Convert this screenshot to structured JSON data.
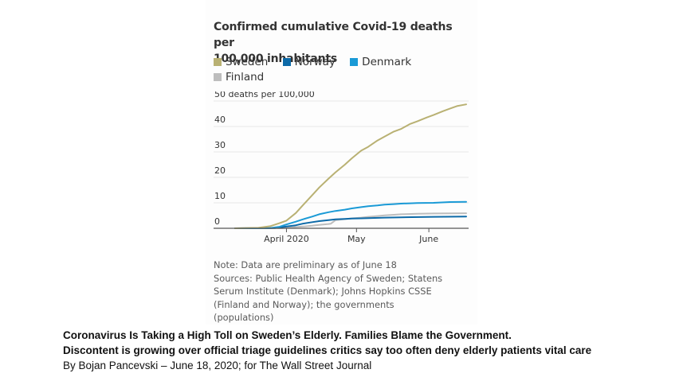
{
  "chart_data": {
    "type": "line",
    "title": "Confirmed cumulative Covid-19 deaths per 100,000 inhabitants",
    "xlabel": "",
    "ylabel": "deaths per 100,000",
    "ylim": [
      0,
      50
    ],
    "xlim_days": [
      0,
      99
    ],
    "x_axis_start": "2020-03-10",
    "yticks": [
      0,
      10,
      20,
      30,
      40,
      50
    ],
    "ytick_labels": [
      "0",
      "10",
      "20",
      "30",
      "40",
      "50 deaths per 100,000"
    ],
    "xticks": [
      {
        "day": 22,
        "label": "April 2020"
      },
      {
        "day": 52,
        "label": "May"
      },
      {
        "day": 83,
        "label": "June"
      }
    ],
    "grid": true,
    "legend_position": "top",
    "series": [
      {
        "name": "Sweden",
        "color": "#b9b173",
        "points": [
          [
            0,
            0
          ],
          [
            10,
            0.2
          ],
          [
            15,
            0.8
          ],
          [
            19,
            2
          ],
          [
            22,
            3
          ],
          [
            26,
            6
          ],
          [
            29,
            9
          ],
          [
            33,
            13
          ],
          [
            36,
            16
          ],
          [
            40,
            19.5
          ],
          [
            43,
            22
          ],
          [
            47,
            25
          ],
          [
            50,
            27.5
          ],
          [
            54,
            30.5
          ],
          [
            57,
            32
          ],
          [
            61,
            34.5
          ],
          [
            64,
            36
          ],
          [
            68,
            38
          ],
          [
            71,
            39
          ],
          [
            75,
            41
          ],
          [
            78,
            42
          ],
          [
            82,
            43.5
          ],
          [
            85,
            44.5
          ],
          [
            89,
            46
          ],
          [
            92,
            47
          ],
          [
            95,
            48
          ],
          [
            99,
            48.7
          ]
        ]
      },
      {
        "name": "Denmark",
        "color": "#1a9ad6",
        "points": [
          [
            0,
            0
          ],
          [
            15,
            0.1
          ],
          [
            19,
            0.6
          ],
          [
            22,
            1.5
          ],
          [
            26,
            2.6
          ],
          [
            29,
            3.5
          ],
          [
            33,
            4.6
          ],
          [
            36,
            5.5
          ],
          [
            40,
            6.3
          ],
          [
            43,
            6.8
          ],
          [
            47,
            7.3
          ],
          [
            50,
            7.8
          ],
          [
            54,
            8.3
          ],
          [
            57,
            8.7
          ],
          [
            61,
            9.0
          ],
          [
            64,
            9.3
          ],
          [
            68,
            9.5
          ],
          [
            71,
            9.7
          ],
          [
            75,
            9.8
          ],
          [
            78,
            9.9
          ],
          [
            85,
            10.0
          ],
          [
            92,
            10.3
          ],
          [
            99,
            10.4
          ]
        ]
      },
      {
        "name": "Norway",
        "color": "#0d6aa8",
        "points": [
          [
            0,
            0
          ],
          [
            17,
            0.1
          ],
          [
            22,
            0.7
          ],
          [
            26,
            1.2
          ],
          [
            29,
            1.8
          ],
          [
            33,
            2.4
          ],
          [
            36,
            2.8
          ],
          [
            40,
            3.2
          ],
          [
            43,
            3.5
          ],
          [
            47,
            3.7
          ],
          [
            50,
            3.8
          ],
          [
            54,
            3.9
          ],
          [
            57,
            4.0
          ],
          [
            64,
            4.2
          ],
          [
            71,
            4.3
          ],
          [
            85,
            4.5
          ],
          [
            99,
            4.6
          ]
        ]
      },
      {
        "name": "Finland",
        "color": "#bdbdbd",
        "points": [
          [
            0,
            0
          ],
          [
            20,
            0.1
          ],
          [
            22,
            0.2
          ],
          [
            26,
            0.5
          ],
          [
            29,
            0.7
          ],
          [
            33,
            1.0
          ],
          [
            36,
            1.3
          ],
          [
            40,
            1.7
          ],
          [
            41,
            1.8
          ],
          [
            43,
            3.2
          ],
          [
            47,
            3.6
          ],
          [
            50,
            3.9
          ],
          [
            54,
            4.2
          ],
          [
            57,
            4.5
          ],
          [
            61,
            4.8
          ],
          [
            64,
            5.1
          ],
          [
            68,
            5.3
          ],
          [
            71,
            5.5
          ],
          [
            78,
            5.7
          ],
          [
            85,
            5.8
          ],
          [
            99,
            5.9
          ]
        ]
      }
    ]
  },
  "legend": [
    {
      "label": "Sweden",
      "color": "#b9b173"
    },
    {
      "label": "Norway",
      "color": "#0d6aa8"
    },
    {
      "label": "Denmark",
      "color": "#1a9ad6"
    },
    {
      "label": "Finland",
      "color": "#bdbdbd"
    }
  ],
  "title_lines": [
    "Confirmed cumulative Covid-19 deaths per",
    "100,000 inhabitants"
  ],
  "notes": {
    "note": "Note: Data are preliminary as of June 18",
    "sources": [
      "Sources: Public Health Agency of Sweden; Statens",
      "Serum Institute (Denmark); Johns Hopkins CSSE",
      "(Finland and Norway); the governments",
      "(populations)"
    ]
  },
  "caption": {
    "headline": "Coronavirus Is Taking a High Toll on Sweden’s Elderly. Families Blame the Government.",
    "subhead": "Discontent is growing over official triage guidelines critics say too often deny elderly patients vital care",
    "byline": "By Bojan Pancevski – June 18, 2020; for The Wall Street Journal"
  }
}
